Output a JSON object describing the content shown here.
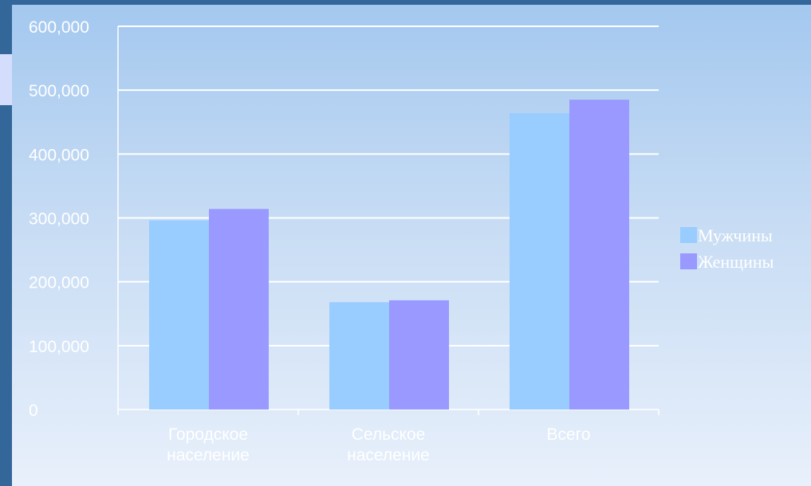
{
  "chart_data": {
    "type": "bar",
    "title": "",
    "xlabel": "",
    "ylabel": "",
    "categories": [
      [
        "Городское",
        "население"
      ],
      [
        "Сельское",
        "население"
      ],
      [
        "Всего"
      ]
    ],
    "series": [
      {
        "name": "Мужчины",
        "values": [
          296000,
          168000,
          464000
        ],
        "color": "#99ccff"
      },
      {
        "name": "Женщины",
        "values": [
          314000,
          171000,
          485000
        ],
        "color": "#9999ff"
      }
    ],
    "ylim": [
      0,
      600000
    ],
    "yticks": [
      0,
      100000,
      200000,
      300000,
      400000,
      500000,
      600000
    ],
    "ytick_labels": [
      "0",
      "100,000",
      "200,000",
      "300,000",
      "400,000",
      "500,000",
      "600,000"
    ],
    "grid": true,
    "legend_position": "right"
  },
  "colors": {
    "frame": "#336699",
    "gridline": "#ffffff",
    "text": "#ffffff"
  }
}
